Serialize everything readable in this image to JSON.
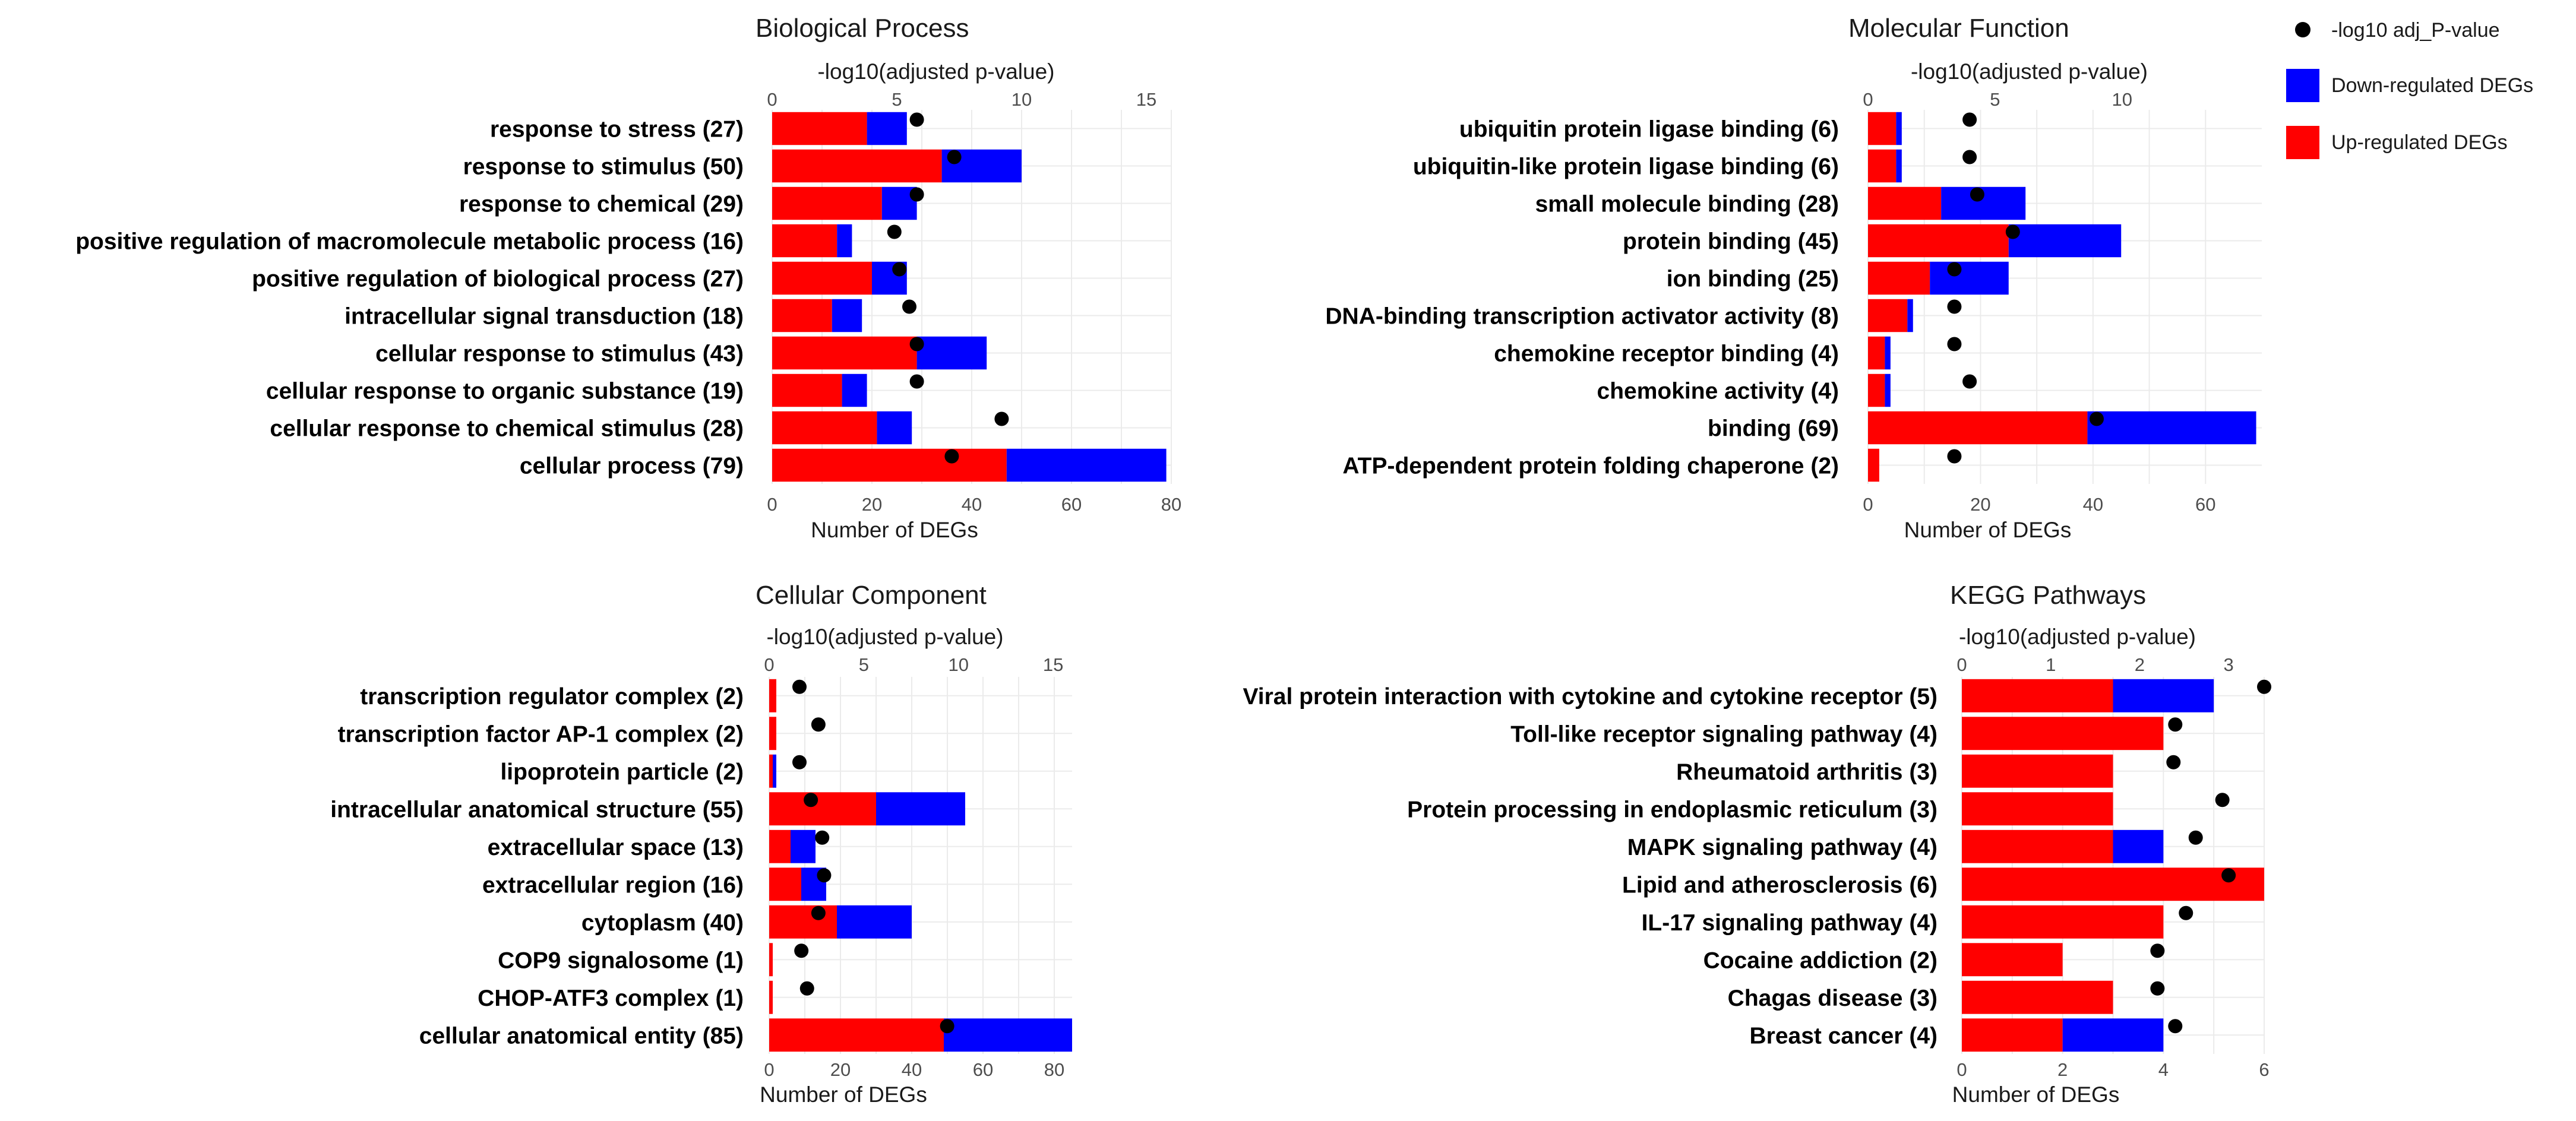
{
  "colors": {
    "up": "#ff0000",
    "down": "#0000ff",
    "point": "#000000",
    "grid": "#ebebeb",
    "background": "#ffffff"
  },
  "legend": {
    "point_label": "-log10 adj_P-value",
    "down_label": "Down-regulated DEGs",
    "up_label": "Up-regulated DEGs"
  },
  "chart_data": [
    {
      "type": "bar",
      "stacked": true,
      "orientation": "horizontal",
      "title": "Biological Process",
      "xlabel": "Number of DEGs",
      "top_axis_label": "-log10(adjusted p-value)",
      "xlim": [
        0,
        80
      ],
      "x_ticks": [
        0,
        20,
        40,
        60,
        80
      ],
      "top_lim": [
        0,
        16
      ],
      "top_ticks": [
        0,
        5,
        10,
        15
      ],
      "categories": [
        "response to stress (27)",
        "response to stimulus (50)",
        "response to chemical (29)",
        "positive regulation of macromolecule metabolic process (16)",
        "positive regulation of biological process (27)",
        "intracellular signal transduction (18)",
        "cellular response to stimulus (43)",
        "cellular response to organic substance (19)",
        "cellular response to chemical stimulus (28)",
        "cellular process (79)"
      ],
      "series": [
        {
          "name": "Up-regulated DEGs",
          "values": [
            19,
            34,
            22,
            13,
            20,
            12,
            29,
            14,
            21,
            47
          ]
        },
        {
          "name": "Down-regulated DEGs",
          "values": [
            8,
            16,
            7,
            3,
            7,
            6,
            14,
            5,
            7,
            32
          ]
        },
        {
          "name": "-log10 adj_P-value",
          "values": [
            5.8,
            7.3,
            5.8,
            4.9,
            5.1,
            5.5,
            5.8,
            5.8,
            9.2,
            7.2
          ]
        }
      ]
    },
    {
      "type": "bar",
      "stacked": true,
      "orientation": "horizontal",
      "title": "Molecular Function",
      "xlabel": "Number of DEGs",
      "top_axis_label": "-log10(adjusted p-value)",
      "xlim": [
        0,
        70
      ],
      "x_ticks": [
        0,
        20,
        40,
        60
      ],
      "top_lim": [
        0,
        15.5
      ],
      "top_ticks": [
        0,
        5,
        10
      ],
      "categories": [
        "ubiquitin protein ligase binding (6)",
        "ubiquitin-like protein ligase binding (6)",
        "small molecule binding (28)",
        "protein binding (45)",
        "ion binding (25)",
        "DNA-binding transcription activator activity (8)",
        "chemokine receptor binding (4)",
        "chemokine activity (4)",
        "binding (69)",
        "ATP-dependent protein folding chaperone (2)"
      ],
      "series": [
        {
          "name": "Up-regulated DEGs",
          "values": [
            5,
            5,
            13,
            25,
            11,
            7,
            3,
            3,
            39,
            2
          ]
        },
        {
          "name": "Down-regulated DEGs",
          "values": [
            1,
            1,
            15,
            20,
            14,
            1,
            1,
            1,
            30,
            0
          ]
        },
        {
          "name": "-log10 adj_P-value",
          "values": [
            4.0,
            4.0,
            4.3,
            5.7,
            3.4,
            3.4,
            3.4,
            4.0,
            9.0,
            3.4
          ]
        }
      ]
    },
    {
      "type": "bar",
      "stacked": true,
      "orientation": "horizontal",
      "title": "Cellular Component",
      "xlabel": "Number of DEGs",
      "top_axis_label": "-log10(adjusted p-value)",
      "xlim": [
        0,
        85
      ],
      "x_ticks": [
        0,
        20,
        40,
        60,
        80
      ],
      "top_lim": [
        0,
        16
      ],
      "top_ticks": [
        0,
        5,
        10,
        15
      ],
      "categories": [
        "transcription regulator complex (2)",
        "transcription factor AP-1 complex (2)",
        "lipoprotein particle (2)",
        "intracellular anatomical structure (55)",
        "extracellular space (13)",
        "extracellular region (16)",
        "cytoplasm (40)",
        "COP9 signalosome (1)",
        "CHOP-ATF3 complex (1)",
        "cellular anatomical entity (85)"
      ],
      "series": [
        {
          "name": "Up-regulated DEGs",
          "values": [
            2,
            2,
            1,
            30,
            6,
            9,
            19,
            1,
            1,
            49
          ]
        },
        {
          "name": "Down-regulated DEGs",
          "values": [
            0,
            0,
            1,
            25,
            7,
            7,
            21,
            0,
            0,
            36
          ]
        },
        {
          "name": "-log10 adj_P-value",
          "values": [
            1.6,
            2.6,
            1.6,
            2.2,
            2.8,
            2.9,
            2.6,
            1.7,
            2.0,
            9.4
          ]
        }
      ]
    },
    {
      "type": "bar",
      "stacked": true,
      "orientation": "horizontal",
      "title": "KEGG Pathways",
      "xlabel": "Number of DEGs",
      "top_axis_label": "-log10(adjusted p-value)",
      "xlim": [
        0,
        6
      ],
      "x_ticks": [
        0,
        2,
        4,
        6
      ],
      "top_lim": [
        0,
        3.4
      ],
      "top_ticks": [
        0,
        1,
        2,
        3
      ],
      "categories": [
        "Viral protein interaction with cytokine and cytokine receptor (5)",
        "Toll-like receptor signaling pathway (4)",
        "Rheumatoid arthritis (3)",
        "Protein processing in endoplasmic reticulum (3)",
        "MAPK signaling pathway (4)",
        "Lipid and atherosclerosis (6)",
        "IL-17 signaling pathway (4)",
        "Cocaine addiction (2)",
        "Chagas disease (3)",
        "Breast cancer (4)"
      ],
      "series": [
        {
          "name": "Up-regulated DEGs",
          "values": [
            3,
            4,
            3,
            3,
            3,
            6,
            4,
            2,
            3,
            2
          ]
        },
        {
          "name": "Down-regulated DEGs",
          "values": [
            2,
            0,
            0,
            0,
            1,
            0,
            0,
            0,
            0,
            2
          ]
        },
        {
          "name": "-log10 adj_P-value",
          "values": [
            3.4,
            2.4,
            2.38,
            2.93,
            2.63,
            3.0,
            2.52,
            2.2,
            2.2,
            2.4
          ]
        }
      ]
    }
  ]
}
